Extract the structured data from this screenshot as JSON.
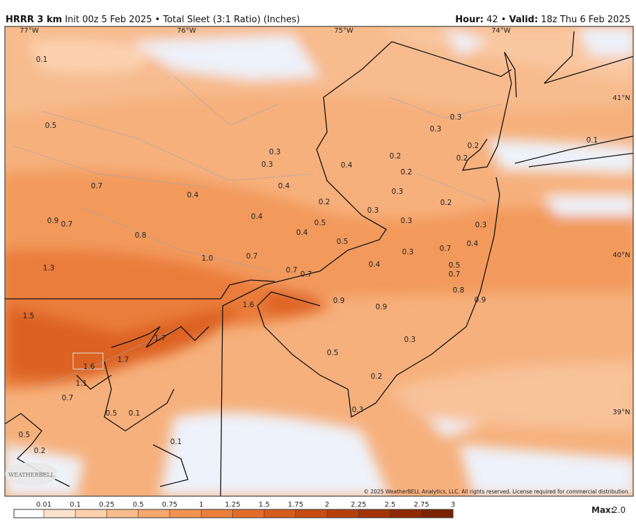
{
  "header": {
    "model": "HRRR 3 km",
    "description": "Init 00z 5 Feb 2025 • Total Sleet (3:1 Ratio) (Inches)",
    "hour_label": "Hour:",
    "hour": "42",
    "separator": "•",
    "valid_label": "Valid:",
    "valid": "18z Thu 6 Feb 2025"
  },
  "map": {
    "longitude_labels": [
      "77°W",
      "76°W",
      "75°W",
      "74°W"
    ],
    "latitude_labels": [
      "41°N",
      "40°N",
      "39°N"
    ],
    "labels": [
      "0.1",
      "0.5",
      "0.7",
      "0.4",
      "0.3",
      "0.3",
      "0.4",
      "0.2",
      "0.4",
      "0.5",
      "0.4",
      "0.5",
      "0.9",
      "0.7",
      "0.8",
      "1.0",
      "0.7",
      "0.7",
      "0.7",
      "1.3",
      "0.4",
      "1.6",
      "0.9",
      "0.9",
      "1.5",
      "1.7",
      "1.7",
      "1.6",
      "1.1",
      "0.7",
      "0.5",
      "0.1",
      "0.5",
      "0.2",
      "0.1",
      "0.5",
      "0.3",
      "0.2",
      "0.3",
      "0.3",
      "0.3",
      "0.2",
      "0.2",
      "0.2",
      "0.2",
      "0.1",
      "0.4",
      "0.3",
      "0.3",
      "0.2",
      "0.3",
      "0.3",
      "0.4",
      "0.7",
      "0.3",
      "0.5",
      "0.7",
      "0.8",
      "0.9"
    ],
    "copyright": "© 2025 WeatherBELL Analytics, LLC. All rights reserved. License required for commercial distribution.",
    "logo": "WEATHERBELL"
  },
  "colorbar": {
    "ticks": [
      0.01,
      0.1,
      0.25,
      0.5,
      0.75,
      1,
      1.25,
      1.5,
      1.75,
      2,
      2.25,
      2.5,
      2.75,
      3
    ],
    "colors": [
      "#ffffff",
      "#fde3cc",
      "#fcd0aa",
      "#fabc8a",
      "#f8a76d",
      "#f39352",
      "#ec7f3b",
      "#e26d2a",
      "#d65c1c",
      "#c84c12",
      "#b73f0b",
      "#a43406",
      "#902a03",
      "#7c2202"
    ],
    "max_label": "Max:",
    "max": "2.0"
  }
}
